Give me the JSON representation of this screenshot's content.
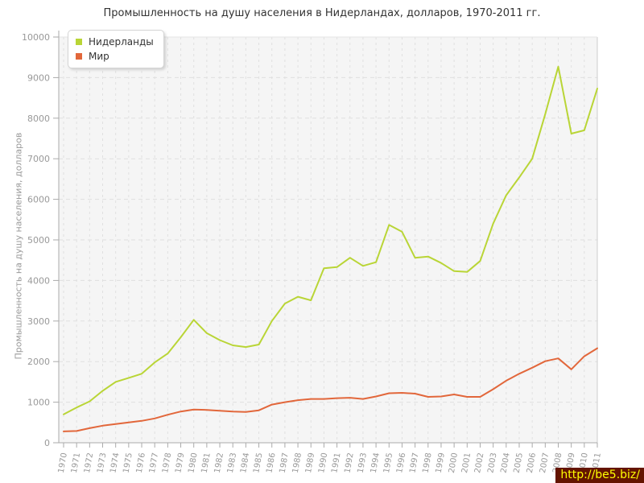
{
  "title": "Промышленность на душу населения в Нидерландах, долларов, 1970-2011 гг.",
  "watermark": "http://be5.biz/",
  "colors": {
    "netherlands_series": "#b9d536",
    "world_series": "#e2673b",
    "plot_bg": "#f5f5f5",
    "grid": "#e0e0e0",
    "axis": "#aaaaaa",
    "tick_text": "#999999",
    "title_text": "#333333",
    "watermark_bg": "#641400",
    "watermark_text": "#ffff00"
  },
  "legend": {
    "items": [
      {
        "label": "Нидерланды"
      },
      {
        "label": "Мир"
      }
    ]
  },
  "chart_data": {
    "type": "line",
    "title": "Промышленность на душу населения в Нидерландах, долларов, 1970-2011 гг.",
    "xlabel": "",
    "ylabel": "Промышленность на душу населения, долларов",
    "ylim": [
      0,
      10000
    ],
    "ytick_step": 1000,
    "grid": true,
    "legend_position": "top-left",
    "x": [
      1970,
      1971,
      1972,
      1973,
      1974,
      1975,
      1976,
      1977,
      1978,
      1979,
      1980,
      1981,
      1982,
      1983,
      1984,
      1985,
      1986,
      1987,
      1988,
      1989,
      1990,
      1991,
      1992,
      1993,
      1994,
      1995,
      1996,
      1997,
      1998,
      1999,
      2000,
      2001,
      2002,
      2003,
      2004,
      2005,
      2006,
      2007,
      2008,
      2009,
      2010,
      2011
    ],
    "series": [
      {
        "name": "Нидерланды",
        "color": "#b9d536",
        "values": [
          700,
          870,
          1020,
          1280,
          1500,
          1600,
          1700,
          1980,
          2200,
          2600,
          3030,
          2700,
          2530,
          2400,
          2360,
          2420,
          3000,
          3430,
          3600,
          3510,
          4300,
          4330,
          4560,
          4360,
          4450,
          5370,
          5200,
          4560,
          4590,
          4430,
          4230,
          4210,
          4480,
          5400,
          6100,
          6540,
          7000,
          8100,
          9270,
          7620,
          7700,
          8730
        ]
      },
      {
        "name": "Мир",
        "color": "#e2673b",
        "values": [
          280,
          290,
          360,
          420,
          460,
          500,
          540,
          600,
          690,
          770,
          820,
          810,
          790,
          770,
          760,
          800,
          940,
          1000,
          1050,
          1080,
          1080,
          1100,
          1110,
          1080,
          1140,
          1220,
          1230,
          1210,
          1130,
          1140,
          1190,
          1130,
          1130,
          1320,
          1530,
          1700,
          1850,
          2010,
          2080,
          1810,
          2130,
          2330
        ]
      }
    ]
  }
}
